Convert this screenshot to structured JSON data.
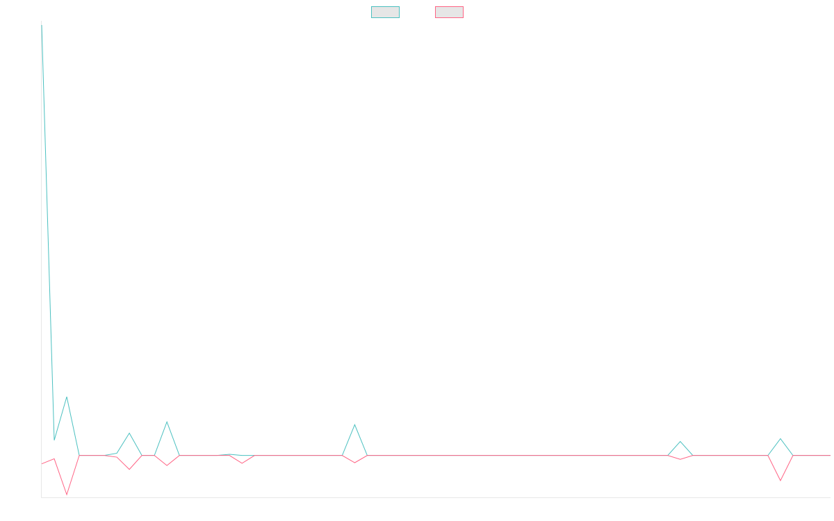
{
  "chart_data": {
    "type": "line",
    "title": "",
    "xlabel": "",
    "ylabel": "",
    "x": [
      0,
      1,
      2,
      3,
      4,
      5,
      6,
      7,
      8,
      9,
      10,
      11,
      12,
      13,
      14,
      15,
      16,
      17,
      18,
      19,
      20,
      21,
      22,
      23,
      24,
      25,
      26,
      27,
      28,
      29,
      30,
      31,
      32,
      33,
      34,
      35,
      36,
      37,
      38,
      39,
      40,
      41,
      42,
      43,
      44,
      45,
      46,
      47,
      48,
      49,
      50,
      51,
      52,
      53,
      54,
      55,
      56,
      57,
      58,
      59,
      60,
      61,
      62,
      63
    ],
    "ylim": [
      -7.5,
      77
    ],
    "grid": false,
    "legend_position": "top-center",
    "series": [
      {
        "name": "",
        "color": "#4bc0c0",
        "values": [
          77,
          2.7,
          10.5,
          0,
          0,
          0,
          0.4,
          4,
          0,
          0,
          6,
          0,
          0,
          0,
          0,
          0.2,
          0,
          0,
          0,
          0,
          0,
          0,
          0,
          0,
          0,
          5.5,
          0,
          0,
          0,
          0,
          0,
          0,
          0,
          0,
          0,
          0,
          0,
          0,
          0,
          0,
          0,
          0,
          0,
          0,
          0,
          0,
          0,
          0,
          0,
          0,
          0,
          2.5,
          0,
          0,
          0,
          0,
          0,
          0,
          0,
          3,
          0,
          0,
          0,
          0
        ]
      },
      {
        "name": "",
        "color": "#ff6384",
        "values": [
          -1.5,
          -0.6,
          -7,
          0,
          0,
          0,
          -0.3,
          -2.5,
          0,
          0,
          -1.8,
          0,
          0,
          0,
          0,
          0,
          -1.4,
          0,
          0,
          0,
          0,
          0,
          0,
          0,
          0,
          -1.3,
          0,
          0,
          0,
          0,
          0,
          0,
          0,
          0,
          0,
          0,
          0,
          0,
          0,
          0,
          0,
          0,
          0,
          0,
          0,
          0,
          0,
          0,
          0,
          0,
          0,
          -0.7,
          0,
          0,
          0,
          0,
          0,
          0,
          0,
          -4.5,
          0,
          0,
          0,
          0
        ]
      }
    ]
  }
}
